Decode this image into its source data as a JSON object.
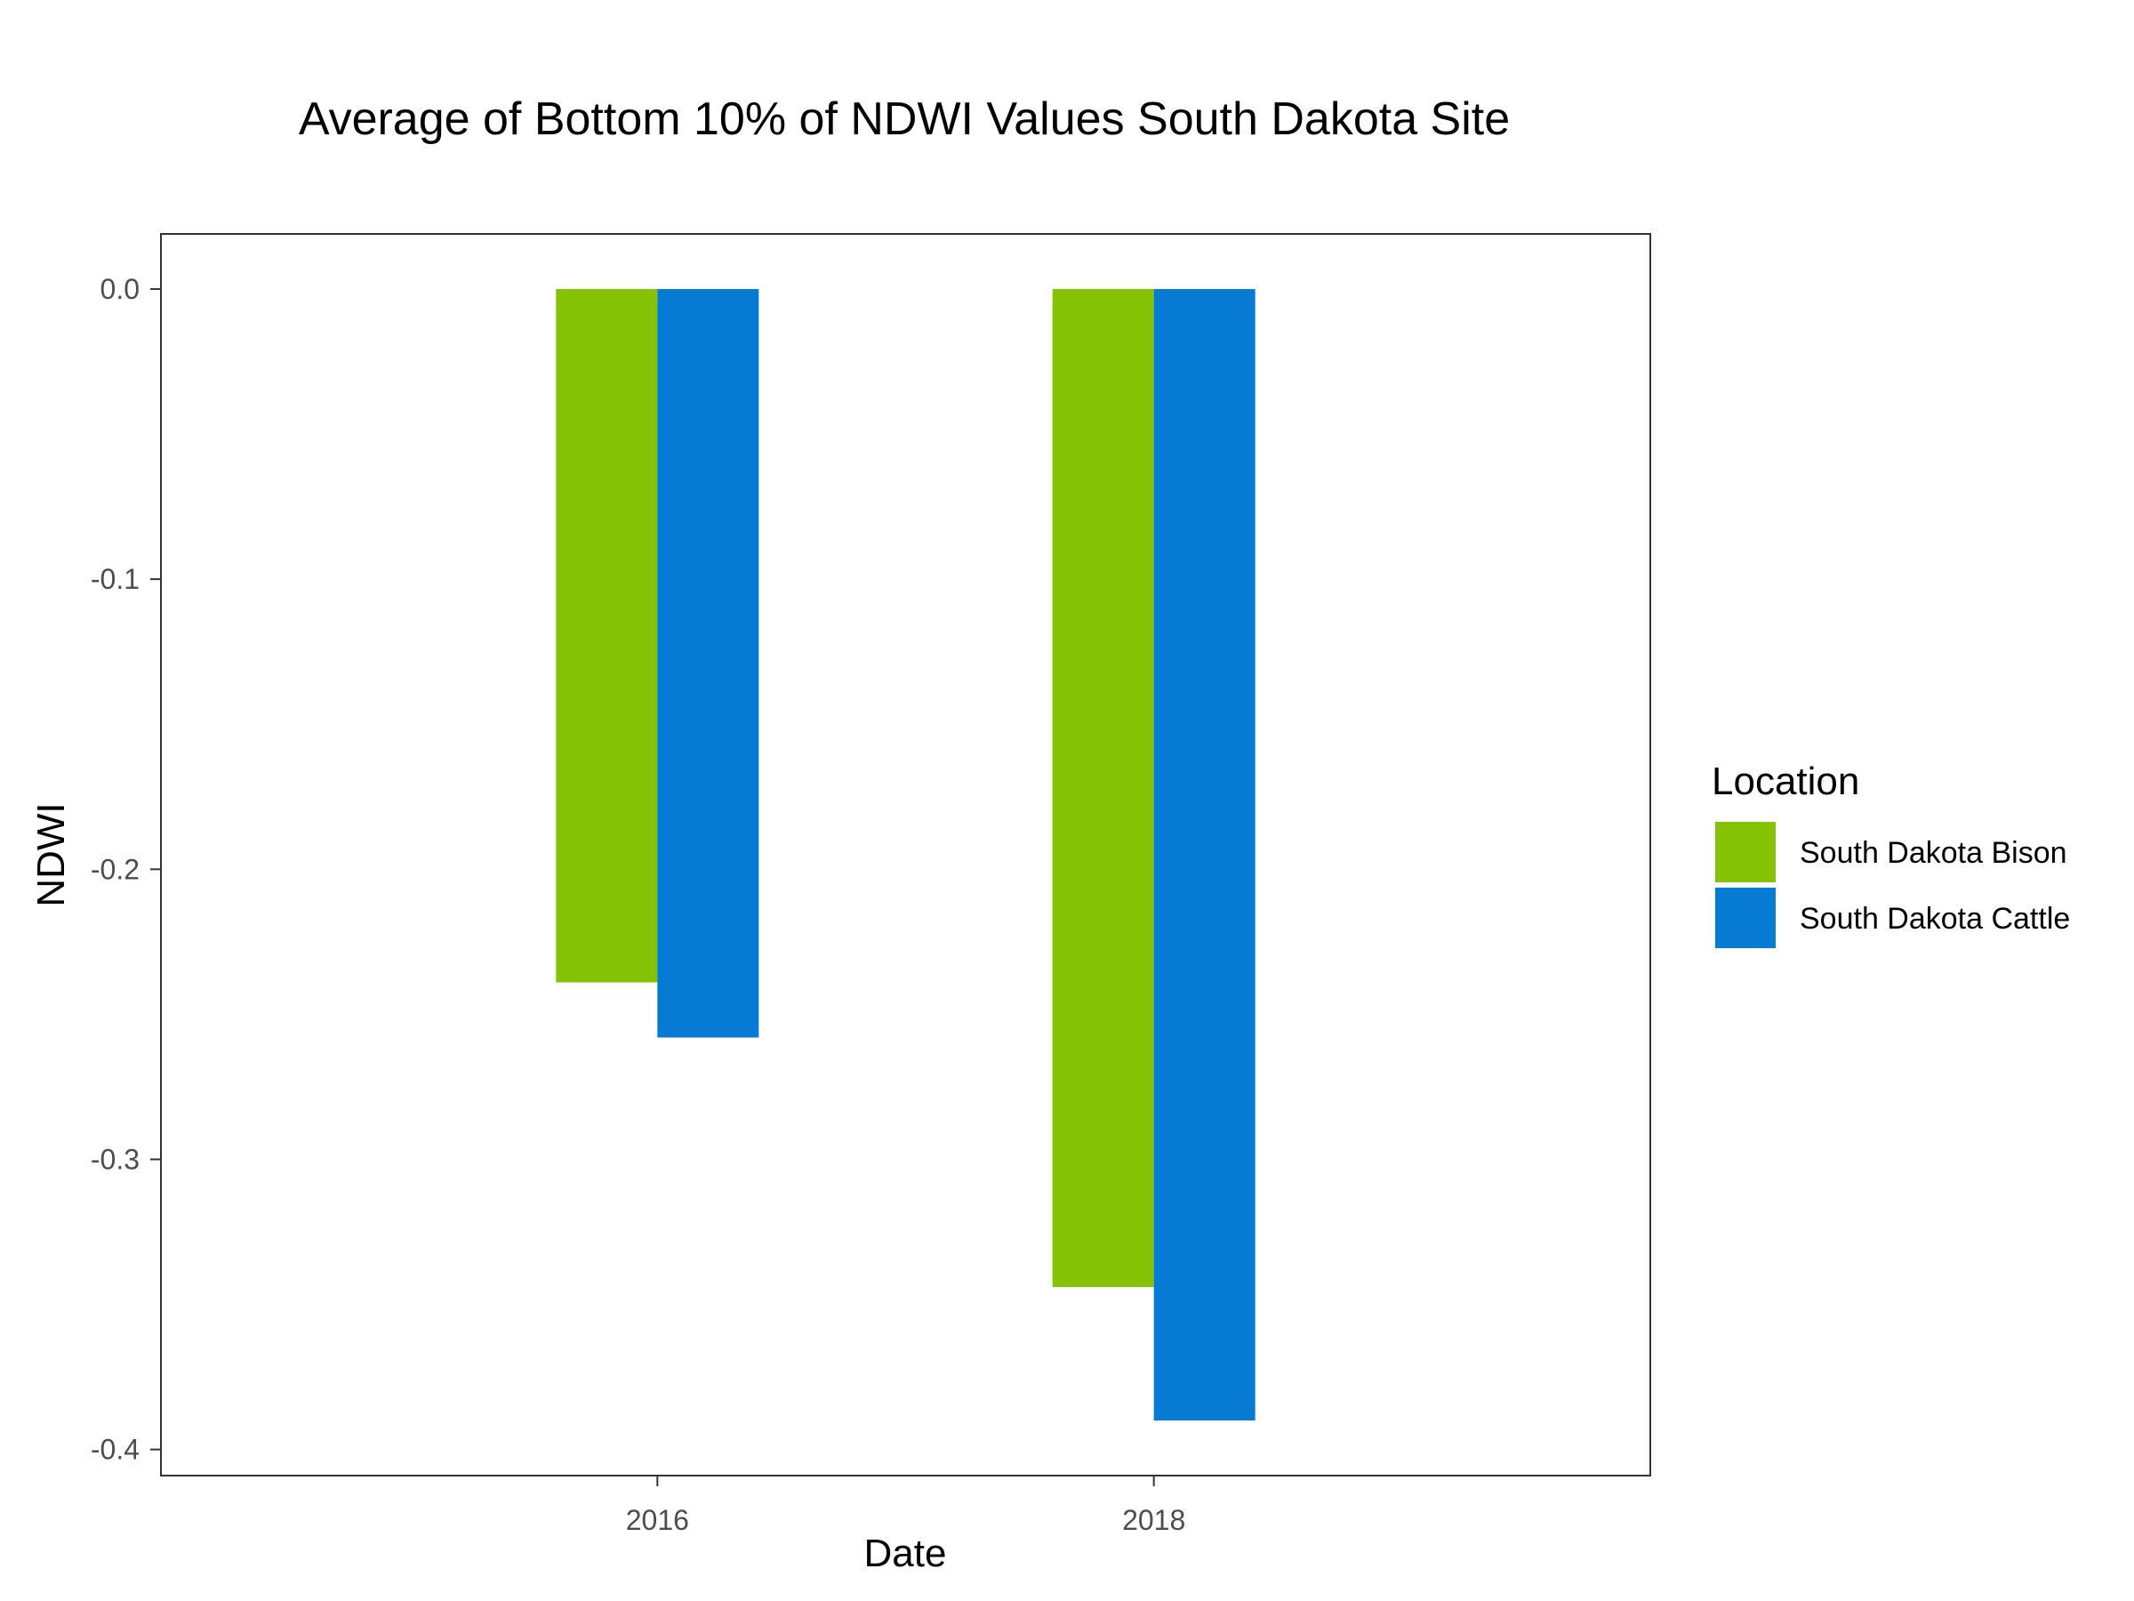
{
  "chart_data": {
    "type": "bar",
    "title": "Average of Bottom 10% of NDWI Values South Dakota Site",
    "xlabel": "Date",
    "ylabel": "NDWI",
    "categories": [
      "2016",
      "2018"
    ],
    "series": [
      {
        "name": "South Dakota Bison",
        "color": "#86C206",
        "values": [
          -0.239,
          -0.344
        ]
      },
      {
        "name": "South Dakota Cattle",
        "color": "#077AD3",
        "values": [
          -0.258,
          -0.39
        ]
      }
    ],
    "ylim": [
      -0.409,
      0.019
    ],
    "yticks": [
      0.0,
      -0.1,
      -0.2,
      -0.3,
      -0.4
    ],
    "ytick_labels": [
      "0.0",
      "-0.1",
      "-0.2",
      "-0.3",
      "-0.4"
    ],
    "grid": false,
    "legend": {
      "title": "Location",
      "position": "right"
    }
  }
}
